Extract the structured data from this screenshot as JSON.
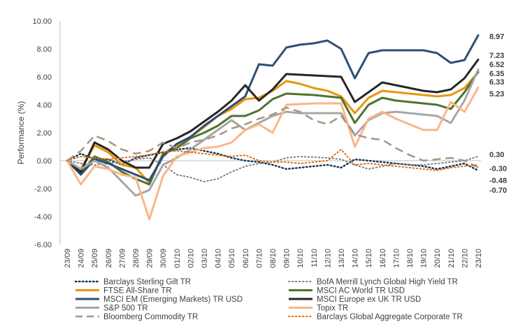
{
  "chart_data": {
    "type": "line",
    "title": "",
    "xlabel": "",
    "ylabel": "Performance (%)",
    "ylim": [
      -6,
      10
    ],
    "yticks": [
      "10.00",
      "8.00",
      "6.00",
      "4.00",
      "2.00",
      "0.00",
      "-2.00",
      "-4.00",
      "-6.00"
    ],
    "ytick_values": [
      10,
      8,
      6,
      4,
      2,
      0,
      -2,
      -4,
      -6
    ],
    "grid": false,
    "legend_position": "bottom",
    "x": [
      "23/09",
      "24/09",
      "25/09",
      "26/09",
      "27/09",
      "28/09",
      "29/09",
      "30/09",
      "01/10",
      "02/10",
      "03/10",
      "04/10",
      "05/10",
      "06/10",
      "07/10",
      "08/10",
      "09/10",
      "10/10",
      "11/10",
      "12/10",
      "13/10",
      "14/10",
      "15/10",
      "16/10",
      "17/10",
      "18/10",
      "19/10",
      "20/10",
      "21/10",
      "22/10",
      "23/10"
    ],
    "end_labels": [
      "8.97",
      "7.23",
      "6.52",
      "6.35",
      "6.33",
      "5.23",
      "0.30",
      "-0.30",
      "-0.48",
      "-0.70"
    ],
    "series": [
      {
        "name": "Barclays Sterling Gilt TR",
        "color": "#17375E",
        "dash": "dot",
        "width": 2.5,
        "values": [
          0,
          0.5,
          0.1,
          0.1,
          -0.3,
          0.2,
          0.4,
          0.6,
          0.8,
          0.9,
          0.7,
          0.5,
          0.2,
          0.0,
          -0.1,
          -0.3,
          -0.6,
          -0.5,
          -0.4,
          -0.3,
          -0.5,
          0.1,
          0.0,
          -0.1,
          -0.2,
          -0.3,
          -0.4,
          -0.6,
          -0.4,
          -0.2,
          -0.7
        ]
      },
      {
        "name": "BofA Merrill Lynch Global High Yield TR",
        "color": "#808080",
        "dash": "dot",
        "width": 2,
        "values": [
          0,
          -0.2,
          -0.3,
          -0.2,
          -0.1,
          0.1,
          0.2,
          -0.3,
          -1.0,
          -1.2,
          -1.5,
          -1.3,
          -0.8,
          -0.4,
          -0.2,
          -0.1,
          0.2,
          0.3,
          0.25,
          0.2,
          0.1,
          -0.3,
          -0.6,
          -0.4,
          -0.2,
          -0.3,
          -0.3,
          -0.2,
          -0.1,
          0.0,
          0.3
        ]
      },
      {
        "name": "FTSE All-Share TR",
        "color": "#E8960C",
        "dash": "solid",
        "width": 3,
        "values": [
          0,
          -0.6,
          1.1,
          0.6,
          -0.3,
          -0.5,
          -1.6,
          0.5,
          1.1,
          1.7,
          2.4,
          3.2,
          3.7,
          4.4,
          4.5,
          5.0,
          5.7,
          5.5,
          5.2,
          5.0,
          4.6,
          3.4,
          4.5,
          5.0,
          4.9,
          4.8,
          4.7,
          4.6,
          4.7,
          5.2,
          6.33
        ]
      },
      {
        "name": "MSCI AC World TR USD",
        "color": "#4E7330",
        "dash": "solid",
        "width": 3,
        "values": [
          0,
          -0.9,
          0.3,
          -0.1,
          -0.8,
          -1.3,
          -1.7,
          0.5,
          0.9,
          1.6,
          2.0,
          2.5,
          3.2,
          3.2,
          3.6,
          4.4,
          4.8,
          4.75,
          4.7,
          4.6,
          4.5,
          2.7,
          4.0,
          4.5,
          4.3,
          4.2,
          4.1,
          4.0,
          3.7,
          4.9,
          6.35
        ]
      },
      {
        "name": "MSCI EM (Emerging Markets) TR USD",
        "color": "#2F4F75",
        "dash": "solid",
        "width": 3,
        "values": [
          0,
          -1.0,
          0.1,
          -0.2,
          -0.6,
          -1.0,
          -1.4,
          0.3,
          1.2,
          1.7,
          2.5,
          3.2,
          3.9,
          4.6,
          6.9,
          6.8,
          8.1,
          8.3,
          8.4,
          8.6,
          8.0,
          5.9,
          7.7,
          7.9,
          7.9,
          7.9,
          7.9,
          7.7,
          7.0,
          7.2,
          8.97
        ]
      },
      {
        "name": "MSCI Europe ex UK TR USD",
        "color": "#262626",
        "dash": "solid",
        "width": 3,
        "values": [
          0,
          -0.8,
          1.3,
          0.8,
          0.0,
          -0.5,
          -0.5,
          1.2,
          1.6,
          2.1,
          2.8,
          3.5,
          4.3,
          5.4,
          4.3,
          5.1,
          6.2,
          6.15,
          6.1,
          6.05,
          6.0,
          4.2,
          4.9,
          5.6,
          5.4,
          5.2,
          5.0,
          4.9,
          5.1,
          5.9,
          7.23
        ]
      },
      {
        "name": "S&P 500 TR",
        "color": "#A6A6A6",
        "dash": "solid",
        "width": 3,
        "values": [
          0,
          -0.6,
          0.0,
          -0.5,
          -1.5,
          -2.5,
          -2.1,
          -0.3,
          0.2,
          0.8,
          1.5,
          2.2,
          2.9,
          2.2,
          2.7,
          3.2,
          3.5,
          3.4,
          3.4,
          3.4,
          3.4,
          1.8,
          2.9,
          3.4,
          3.5,
          3.4,
          3.3,
          3.2,
          2.7,
          4.3,
          6.52
        ]
      },
      {
        "name": "Topix TR",
        "color": "#FBB686",
        "dash": "solid",
        "width": 3,
        "values": [
          0,
          -1.7,
          -0.4,
          -0.6,
          -1.0,
          -1.2,
          -4.2,
          -1.1,
          0.3,
          0.6,
          0.9,
          1.0,
          1.3,
          2.2,
          2.6,
          2.0,
          4.0,
          4.05,
          4.1,
          4.1,
          4.1,
          1.0,
          3.0,
          3.5,
          3.0,
          2.6,
          2.2,
          2.2,
          4.2,
          3.5,
          5.23
        ]
      },
      {
        "name": "Bloomberg Commodity TR",
        "color": "#A89580",
        "dash": "dash",
        "width": 2.5,
        "values": [
          0,
          0.7,
          1.8,
          1.4,
          0.8,
          0.5,
          0.7,
          1.3,
          0.9,
          1.3,
          1.5,
          1.8,
          2.3,
          2.6,
          3.0,
          3.3,
          3.8,
          3.5,
          2.9,
          2.6,
          3.2,
          1.9,
          1.6,
          1.5,
          0.9,
          0.4,
          0.0,
          0.1,
          0.2,
          0.0,
          -0.48
        ]
      },
      {
        "name": "Barclays Global Aggregate Corporate TR",
        "color": "#E46C0A",
        "dash": "dot",
        "width": 2,
        "values": [
          0,
          0.3,
          0.2,
          0.1,
          0.2,
          0.3,
          0.4,
          0.6,
          0.7,
          0.6,
          0.5,
          0.4,
          0.3,
          0.4,
          0.0,
          -0.1,
          -0.1,
          -0.2,
          -0.1,
          0.0,
          0.8,
          -0.3,
          -0.2,
          -0.3,
          -0.4,
          -0.5,
          -0.6,
          -0.7,
          -0.5,
          -0.4,
          -0.3
        ]
      }
    ]
  }
}
